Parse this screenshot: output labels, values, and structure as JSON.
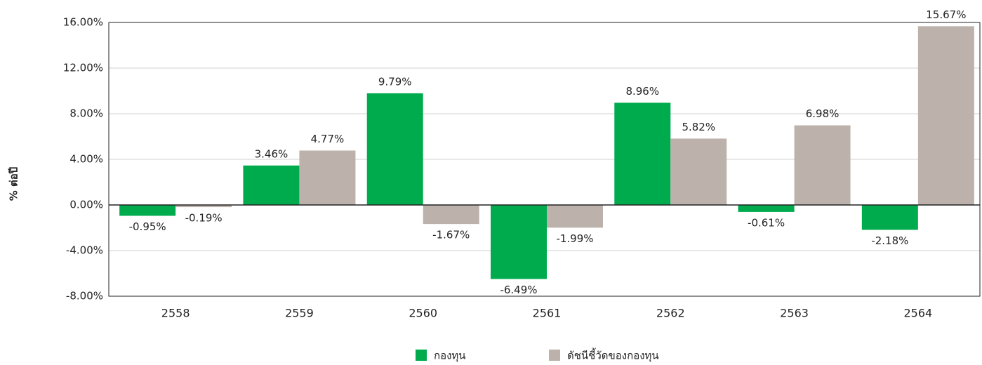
{
  "chart_data": {
    "type": "bar",
    "y_label": "% ต่อปี",
    "categories": [
      "2558",
      "2559",
      "2560",
      "2561",
      "2562",
      "2563",
      "2564"
    ],
    "series": [
      {
        "name": "กองทุน",
        "color": "#00ab4e",
        "values": [
          -0.95,
          3.46,
          9.79,
          -6.49,
          8.96,
          -0.61,
          -2.18
        ],
        "value_labels": [
          "-0.95%",
          "3.46%",
          "9.79%",
          "-6.49%",
          "8.96%",
          "-0.61%",
          "-2.18%"
        ]
      },
      {
        "name": "ดัชนีชี้วัดของกองทุน",
        "color": "#bdb2ab",
        "values": [
          -0.19,
          4.77,
          -1.67,
          -1.99,
          5.82,
          6.98,
          15.67
        ],
        "value_labels": [
          "-0.19%",
          "4.77%",
          "-1.67%",
          "-1.99%",
          "5.82%",
          "6.98%",
          "15.67%"
        ]
      }
    ],
    "ylim": [
      -8,
      16
    ],
    "yticks": [
      {
        "value": -8,
        "label": "-8.00%"
      },
      {
        "value": -4,
        "label": "-4.00%"
      },
      {
        "value": 0,
        "label": "0.00%"
      },
      {
        "value": 4,
        "label": "4.00%"
      },
      {
        "value": 8,
        "label": "8.00%"
      },
      {
        "value": 12,
        "label": "12.00%"
      },
      {
        "value": 16,
        "label": "16.00%"
      }
    ],
    "grid": true,
    "legend": "bottom"
  }
}
